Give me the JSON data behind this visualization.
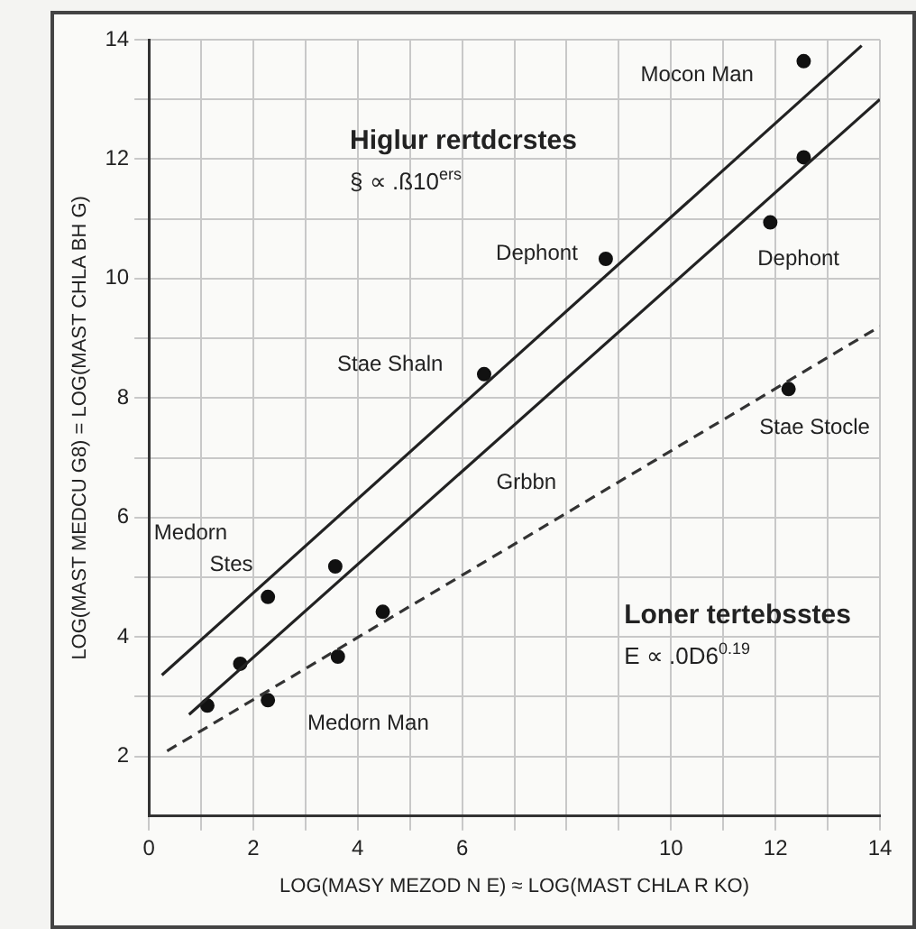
{
  "chart_data": {
    "type": "scatter",
    "xlabel": "LOG(MASY MEZOD N E) ≈ LOG(MAST CHLA R KO)",
    "ylabel": "LOG(MAST MEDCU G8) = LOG(MAST CHLA BH G)",
    "xlim": [
      0,
      14
    ],
    "xticks": [
      0,
      {
        "value": 1,
        "label": null
      },
      2,
      {
        "value": 3,
        "label": null
      },
      4,
      {
        "value": 5,
        "label": null
      },
      6,
      {
        "value": 7,
        "label": null
      },
      {
        "value": 8,
        "label": null
      },
      {
        "value": 9,
        "label": null
      },
      10,
      {
        "value": 11,
        "label": null
      },
      12,
      {
        "value": 13,
        "label": null
      },
      14
    ],
    "ylim": [
      1,
      14
    ],
    "yticks": [
      2,
      {
        "value": 3,
        "label": null
      },
      4,
      {
        "value": 5,
        "label": null
      },
      6,
      {
        "value": 7,
        "label": null
      },
      8,
      {
        "value": 9,
        "label": null
      },
      10,
      {
        "value": 11,
        "label": null
      },
      12,
      {
        "value": 13,
        "label": null
      },
      14
    ],
    "grid": true,
    "legend": false,
    "marker": "circle",
    "series": [
      {
        "type": "line",
        "color": "#222222",
        "x": [
          0.25,
          13.65
        ],
        "values": [
          3.36,
          13.9
        ],
        "line_style": "solid",
        "marker": "none"
      },
      {
        "type": "line",
        "color": "#222222",
        "x": [
          0.77,
          14
        ],
        "values": [
          2.7,
          13
        ],
        "line_style": "solid",
        "marker": "none"
      },
      {
        "type": "line",
        "color": "#333333",
        "x": [
          0.35,
          14
        ],
        "values": [
          2.09,
          9.2
        ],
        "line_style": "dashed",
        "marker": "none"
      },
      {
        "color": "#111111",
        "x": [
          12.54,
          8.75,
          11.9,
          6.42,
          2.28,
          2.28,
          12.25,
          3.57,
          4.48,
          3.62,
          1.75,
          1.12,
          12.54
        ],
        "values": [
          13.64,
          10.33,
          10.94,
          8.4,
          2.94,
          4.67,
          8.15,
          5.18,
          4.42,
          3.67,
          3.55,
          2.85,
          12.03
        ]
      }
    ],
    "annotations": [
      "Higlur rertdcrstes",
      "§ ∝ .ß10$^{ers}$",
      "Loner tertebsstes",
      "E ∝ .0D6$^{0.19}$",
      "Mocon Man",
      "Dephont",
      "Dephont",
      "Stae Shaln",
      "Stae Stocle",
      "Grbbn",
      "Medorn",
      "Stes",
      "Medorn Man"
    ]
  }
}
